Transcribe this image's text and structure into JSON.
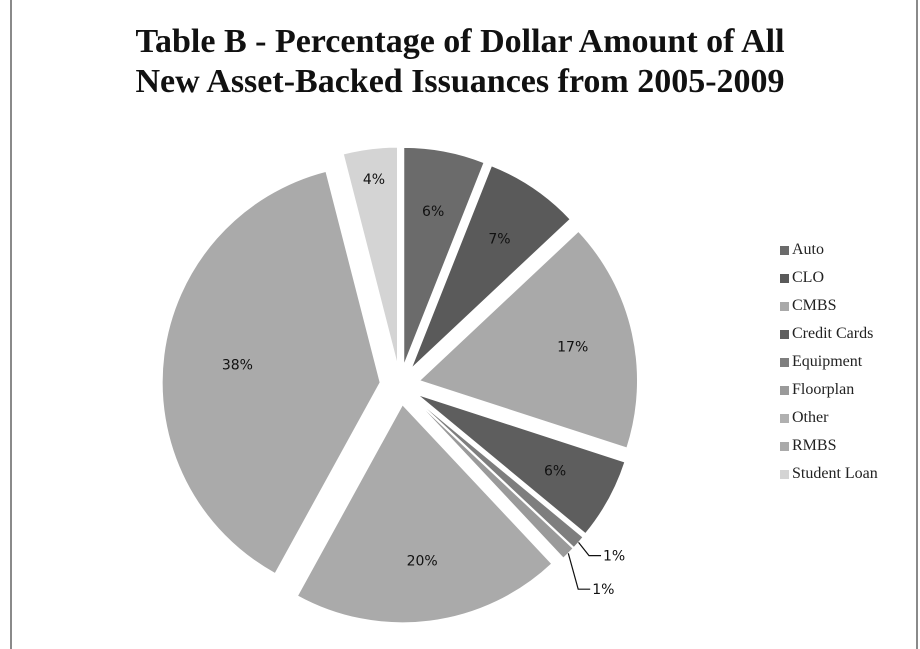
{
  "chart_data": {
    "type": "pie",
    "title_lines": [
      "Table B - Percentage of Dollar Amount of All",
      "New Asset-Backed Issuances from 2005-2009"
    ],
    "slices": [
      {
        "name": "Auto",
        "value": 6,
        "label": "6%",
        "color": "#6b6b6b"
      },
      {
        "name": "CLO",
        "value": 7,
        "label": "7%",
        "color": "#5a5a5a"
      },
      {
        "name": "CMBS",
        "value": 17,
        "label": "17%",
        "color": "#a9a9a9"
      },
      {
        "name": "Credit Cards",
        "value": 6,
        "label": "6%",
        "color": "#5e5e5e"
      },
      {
        "name": "Equipment",
        "value": 1,
        "label": "1%",
        "color": "#7e7e7e"
      },
      {
        "name": "Floorplan",
        "value": 1,
        "label": "1%",
        "color": "#9a9a9a"
      },
      {
        "name": "Other",
        "value": 0,
        "label": "",
        "color": "#b0b0b0"
      },
      {
        "name": "RMBS",
        "value": 20,
        "label": "20%",
        "color": "#aaaaaa"
      },
      {
        "name": "",
        "value": 38,
        "label": "38%",
        "color": "#aaaaaa"
      },
      {
        "name": "Student Loan",
        "value": 4,
        "label": "4%",
        "color": "#d4d4d4"
      }
    ],
    "legend": {
      "placement": "right",
      "entries": [
        "Auto",
        "CLO",
        "CMBS",
        "Credit Cards",
        "Equipment",
        "Floorplan",
        "Other",
        "RMBS",
        "Student Loan"
      ]
    }
  }
}
